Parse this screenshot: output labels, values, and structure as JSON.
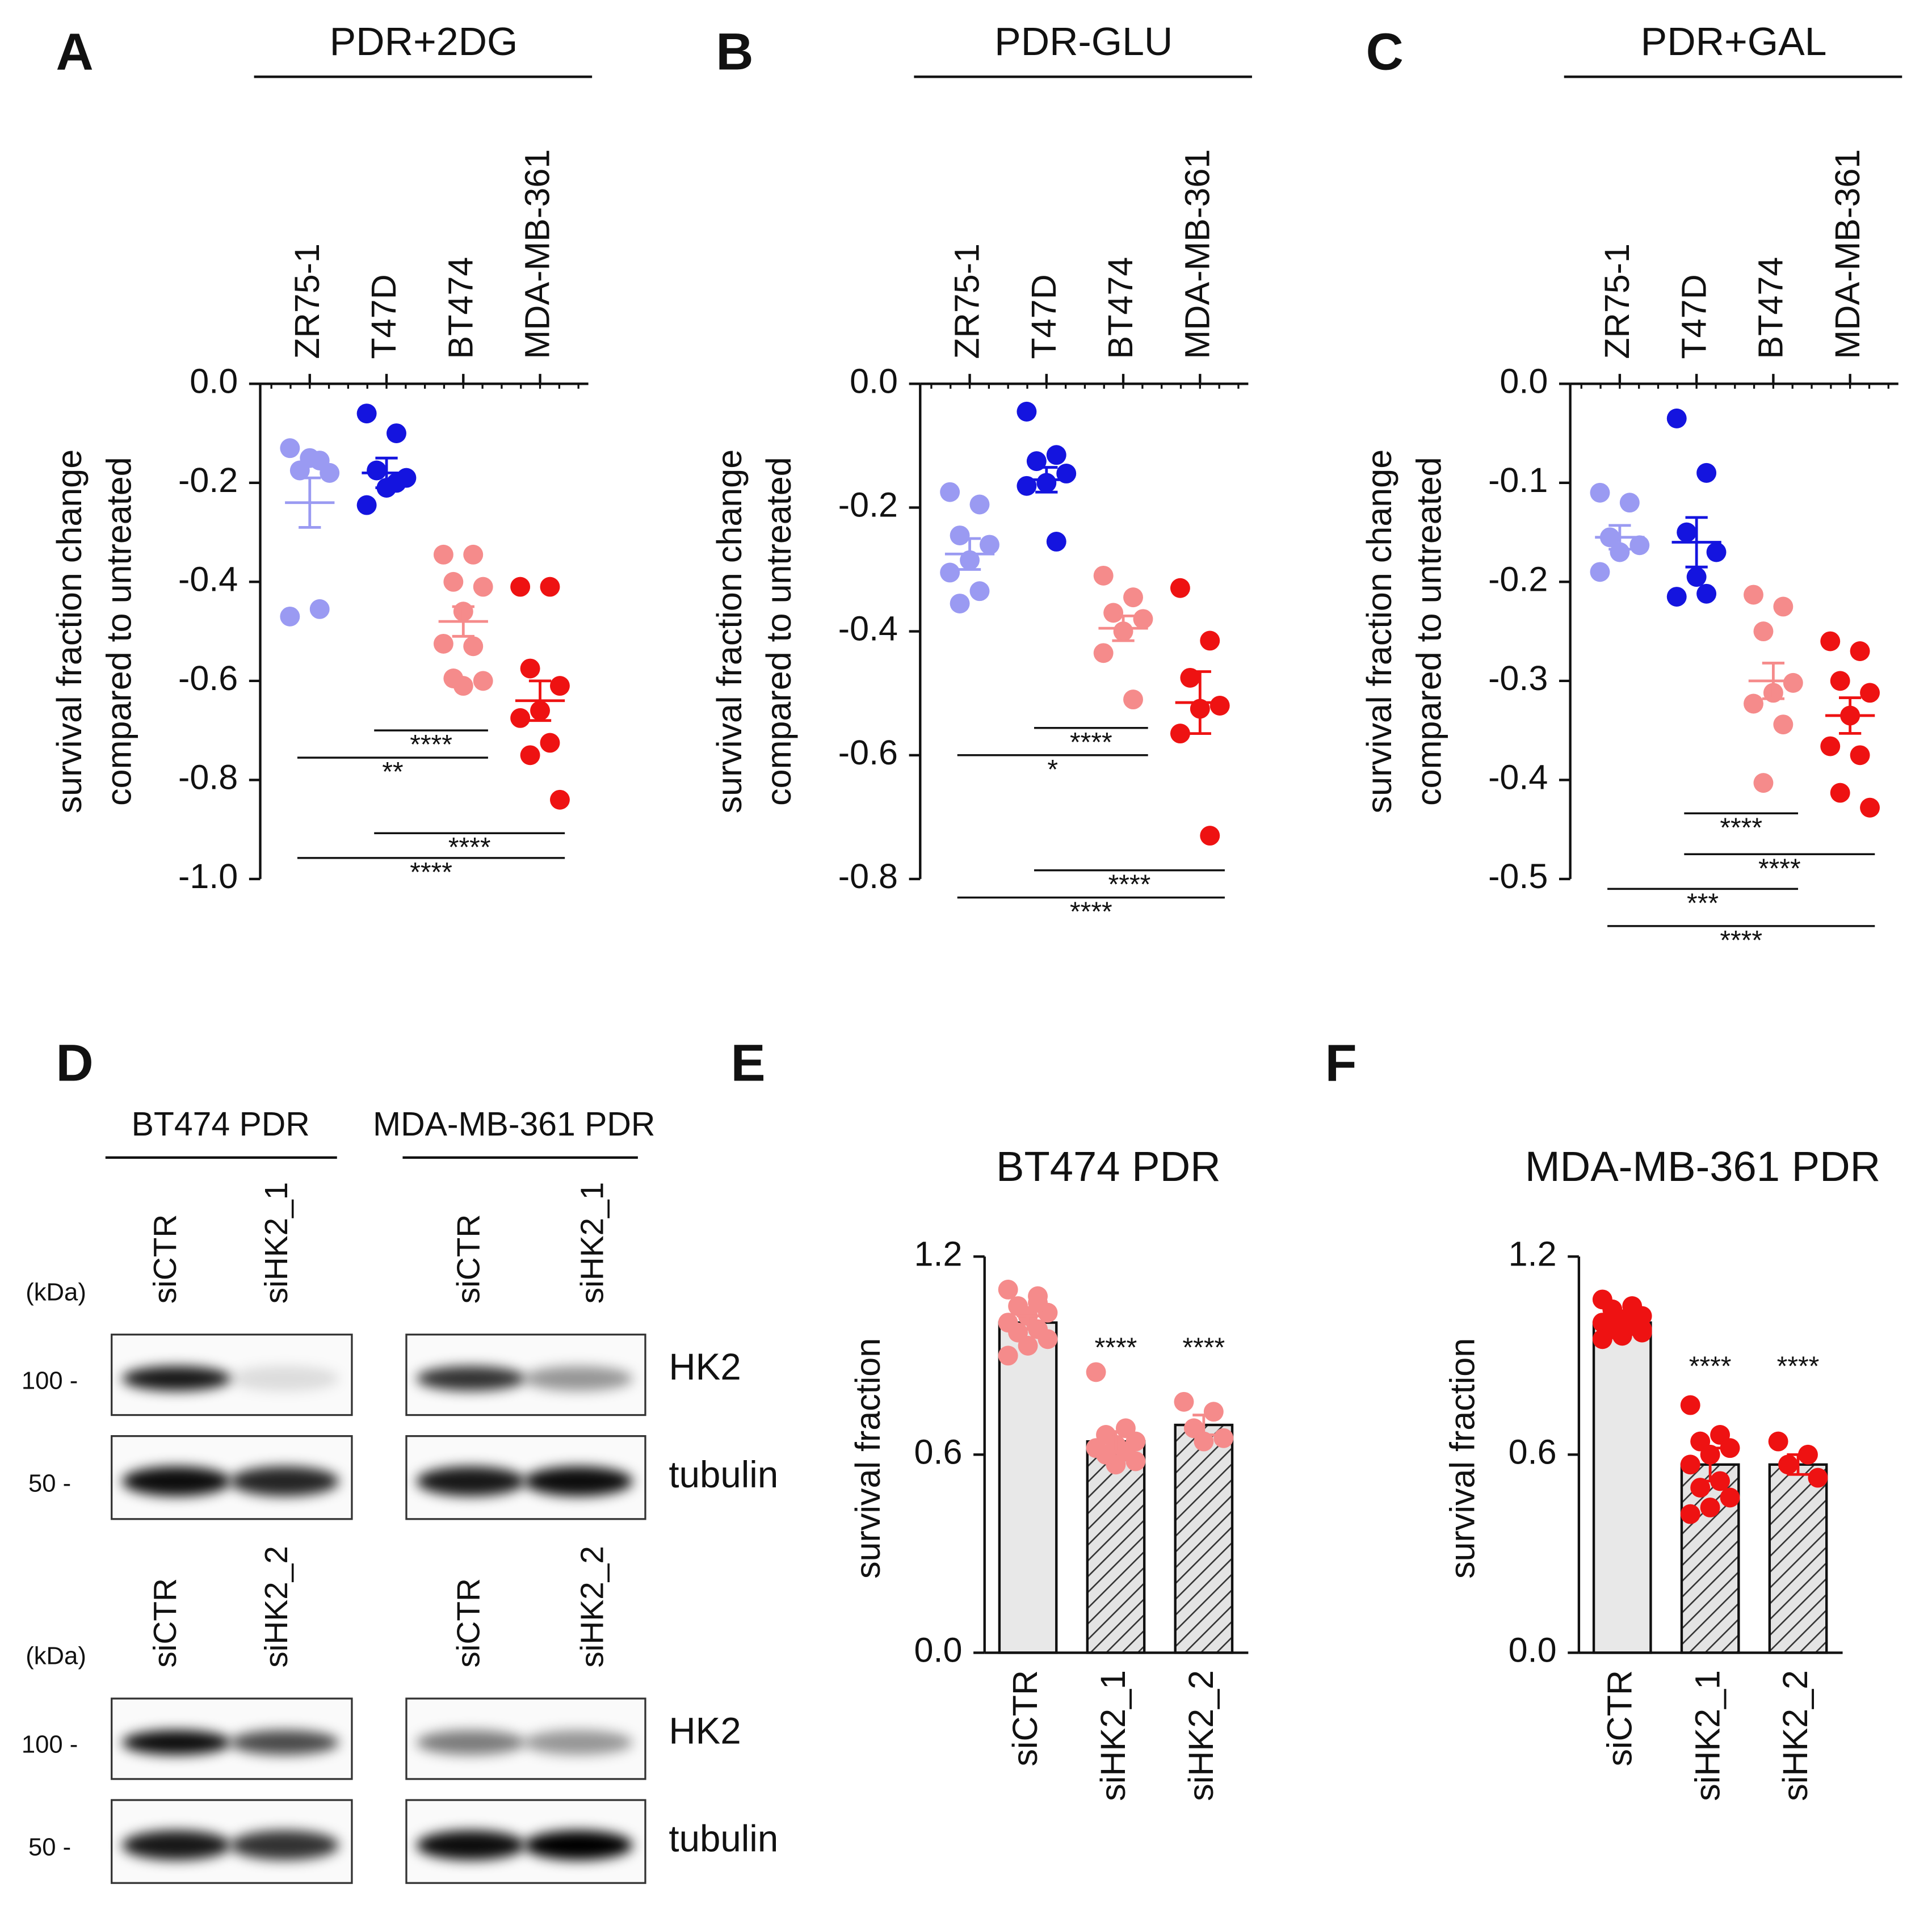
{
  "chart_data": [
    {
      "type": "dotplot",
      "panel": "A",
      "title": "PDR+2DG",
      "ylabel": [
        "survival fraction change",
        "compared to untreated"
      ],
      "categories": [
        "ZR75-1",
        "T47D",
        "BT474",
        "MDA-MB-361"
      ],
      "colors": [
        "#9a9af2",
        "#1414df",
        "#f58b8b",
        "#ee1212"
      ],
      "points": [
        [
          -0.13,
          -0.155,
          -0.175,
          -0.18,
          -0.15,
          -0.47,
          -0.455
        ],
        [
          -0.06,
          -0.1,
          -0.175,
          -0.19,
          -0.21,
          -0.245,
          -0.2
        ],
        [
          -0.345,
          -0.345,
          -0.4,
          -0.41,
          -0.46,
          -0.525,
          -0.53,
          -0.595,
          -0.6,
          -0.61
        ],
        [
          -0.41,
          -0.41,
          -0.575,
          -0.61,
          -0.66,
          -0.675,
          -0.725,
          -0.75,
          -0.84
        ]
      ],
      "means": [
        -0.24,
        -0.18,
        -0.48,
        -0.64
      ],
      "sems": [
        0.05,
        0.03,
        0.03,
        0.04
      ],
      "ylim": [
        -1.0,
        0.0
      ],
      "yticks": [
        {
          "value": 0,
          "label": "0.0"
        },
        {
          "value": -0.2,
          "label": "-0.2"
        },
        {
          "value": -0.4,
          "label": "-0.4"
        },
        {
          "value": -0.6,
          "label": "-0.6"
        },
        {
          "value": -0.8,
          "label": "-0.8"
        },
        {
          "value": -1.0,
          "label": "-1.0"
        }
      ],
      "significance": [
        {
          "from": 1,
          "to": 2,
          "label": "****"
        },
        {
          "from": 0,
          "to": 2,
          "label": "**"
        },
        {
          "from": 1,
          "to": 3,
          "label": "****"
        },
        {
          "from": 0,
          "to": 3,
          "label": "****"
        }
      ]
    },
    {
      "type": "dotplot",
      "panel": "B",
      "title": "PDR-GLU",
      "ylabel": [
        "survival fraction change",
        "compared to untreated"
      ],
      "categories": [
        "ZR75-1",
        "T47D",
        "BT474",
        "MDA-MB-361"
      ],
      "colors": [
        "#9a9af2",
        "#1414df",
        "#f58b8b",
        "#ee1212"
      ],
      "points": [
        [
          -0.175,
          -0.195,
          -0.245,
          -0.26,
          -0.285,
          -0.305,
          -0.335,
          -0.355
        ],
        [
          -0.045,
          -0.115,
          -0.125,
          -0.145,
          -0.16,
          -0.165,
          -0.255
        ],
        [
          -0.31,
          -0.345,
          -0.37,
          -0.38,
          -0.4,
          -0.435,
          -0.51
        ],
        [
          -0.33,
          -0.415,
          -0.475,
          -0.52,
          -0.525,
          -0.565,
          -0.73
        ]
      ],
      "means": [
        -0.275,
        -0.155,
        -0.395,
        -0.515
      ],
      "sems": [
        0.025,
        0.02,
        0.02,
        0.05
      ],
      "ylim": [
        -0.8,
        0.0
      ],
      "yticks": [
        {
          "value": 0,
          "label": "0.0"
        },
        {
          "value": -0.2,
          "label": "-0.2"
        },
        {
          "value": -0.4,
          "label": "-0.4"
        },
        {
          "value": -0.6,
          "label": "-0.6"
        },
        {
          "value": -0.8,
          "label": "-0.8"
        }
      ],
      "significance": [
        {
          "from": 1,
          "to": 2,
          "label": "****"
        },
        {
          "from": 0,
          "to": 2,
          "label": "*"
        },
        {
          "from": 1,
          "to": 3,
          "label": "****"
        },
        {
          "from": 0,
          "to": 3,
          "label": "****"
        }
      ]
    },
    {
      "type": "dotplot",
      "panel": "C",
      "title": "PDR+GAL",
      "ylabel": [
        "survival fraction change",
        "compared to untreated"
      ],
      "categories": [
        "ZR75-1",
        "T47D",
        "BT474",
        "MDA-MB-361"
      ],
      "colors": [
        "#9a9af2",
        "#1414df",
        "#f58b8b",
        "#ee1212"
      ],
      "points": [
        [
          -0.11,
          -0.12,
          -0.155,
          -0.163,
          -0.17,
          -0.19
        ],
        [
          -0.035,
          -0.09,
          -0.15,
          -0.17,
          -0.195,
          -0.215,
          -0.212
        ],
        [
          -0.213,
          -0.225,
          -0.25,
          -0.302,
          -0.312,
          -0.323,
          -0.344,
          -0.403
        ],
        [
          -0.26,
          -0.27,
          -0.3,
          -0.312,
          -0.335,
          -0.366,
          -0.375,
          -0.413,
          -0.428
        ]
      ],
      "means": [
        -0.155,
        -0.16,
        -0.3,
        -0.335
      ],
      "sems": [
        0.012,
        0.025,
        0.018,
        0.018
      ],
      "ylim": [
        -0.5,
        0.0
      ],
      "yticks": [
        {
          "value": 0,
          "label": "0.0"
        },
        -0.1,
        -0.2,
        -0.3,
        -0.4,
        -0.5
      ],
      "significance": [
        {
          "from": 1,
          "to": 2,
          "label": "****"
        },
        {
          "from": 1,
          "to": 3,
          "label": "****"
        },
        {
          "from": 0,
          "to": 2,
          "label": "***"
        },
        {
          "from": 0,
          "to": 3,
          "label": "****"
        }
      ]
    },
    {
      "type": "bar",
      "panel": "E",
      "title": "BT474 PDR",
      "ylabel": "survival fraction",
      "categories": [
        "siCTR",
        "siHK2_1",
        "siHK2_2"
      ],
      "values": [
        1.0,
        0.64,
        0.69
      ],
      "sems": [
        0.02,
        0.03,
        0.03
      ],
      "bar_styles": [
        "solid",
        "hatched",
        "hatched"
      ],
      "point_color": "#f58b8b",
      "points": [
        [
          1.1,
          1.08,
          1.05,
          1.03,
          1.02,
          1.0,
          0.98,
          0.97,
          0.95,
          0.93,
          0.9,
          1.06
        ],
        [
          0.85,
          0.68,
          0.66,
          0.64,
          0.63,
          0.62,
          0.61,
          0.6,
          0.58,
          0.57
        ],
        [
          0.76,
          0.73,
          0.68,
          0.65,
          0.64
        ]
      ],
      "ylim": [
        0,
        1.2
      ],
      "yticks": [
        {
          "value": 0,
          "label": "0.0"
        },
        0.6,
        1.2
      ],
      "significance": [
        {
          "index": 1,
          "label": "****"
        },
        {
          "index": 2,
          "label": "****"
        }
      ]
    },
    {
      "type": "bar",
      "panel": "F",
      "title": "MDA-MB-361 PDR",
      "ylabel": "survival fraction",
      "categories": [
        "siCTR",
        "siHK2_1",
        "siHK2_2"
      ],
      "values": [
        1.0,
        0.57,
        0.57
      ],
      "sems": [
        0.015,
        0.05,
        0.03
      ],
      "bar_styles": [
        "solid",
        "hatched",
        "hatched"
      ],
      "point_color": "#ee1212",
      "points": [
        [
          1.07,
          1.05,
          1.04,
          1.02,
          1.01,
          1.0,
          0.99,
          0.98,
          0.97,
          0.96,
          0.95,
          1.03,
          1.0,
          0.98
        ],
        [
          0.75,
          0.66,
          0.64,
          0.62,
          0.6,
          0.57,
          0.52,
          0.5,
          0.47,
          0.44,
          0.42
        ],
        [
          0.64,
          0.6,
          0.57,
          0.53
        ]
      ],
      "ylim": [
        0,
        1.2
      ],
      "yticks": [
        {
          "value": 0,
          "label": "0.0"
        },
        0.6,
        1.2
      ],
      "significance": [
        {
          "index": 1,
          "label": "****"
        },
        {
          "index": 2,
          "label": "****"
        }
      ]
    }
  ],
  "blot": {
    "panel": "D",
    "groups": [
      "BT474 PDR",
      "MDA-MB-361 PDR"
    ],
    "unit": "(kDa)",
    "markers": [
      "100 -",
      "50 -"
    ],
    "proteins": [
      "HK2",
      "tubulin"
    ],
    "rows": [
      {
        "lanes": [
          "siCTR",
          "siHK2_1"
        ]
      },
      {
        "lanes": [
          "siCTR",
          "siHK2_2"
        ]
      }
    ]
  }
}
